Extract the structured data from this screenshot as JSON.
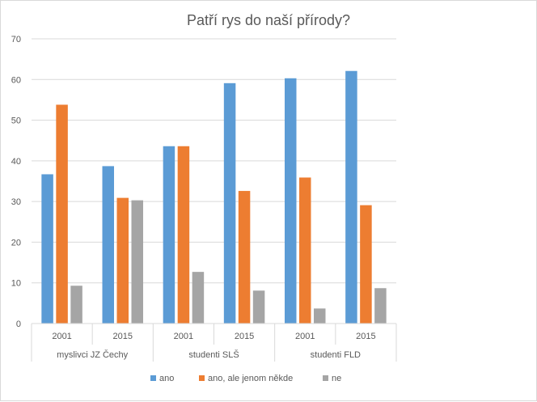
{
  "chart_data": {
    "type": "bar",
    "title": "Patří rys do naší přírody?",
    "xlabel": "",
    "ylabel": "",
    "ylim": [
      0,
      70
    ],
    "yticks": [
      0,
      10,
      20,
      30,
      40,
      50,
      60,
      70
    ],
    "grid": true,
    "legend_position": "bottom",
    "groups": [
      {
        "label": "myslivci JZ Čechy",
        "categories": [
          "2001",
          "2015"
        ]
      },
      {
        "label": "studenti SLŠ",
        "categories": [
          "2001",
          "2015"
        ]
      },
      {
        "label": "studenti FLD",
        "categories": [
          "2001",
          "2015"
        ]
      }
    ],
    "series": [
      {
        "name": "ano",
        "color": "#5b9bd5",
        "values": [
          36.7,
          38.7,
          43.6,
          59.1,
          60.3,
          62.1
        ]
      },
      {
        "name": "ano, ale jenom někde",
        "color": "#ed7d31",
        "values": [
          53.8,
          30.9,
          43.6,
          32.6,
          35.9,
          29.1
        ]
      },
      {
        "name": "ne",
        "color": "#a5a5a5",
        "values": [
          9.3,
          30.3,
          12.7,
          8.1,
          3.7,
          8.7
        ]
      }
    ]
  }
}
